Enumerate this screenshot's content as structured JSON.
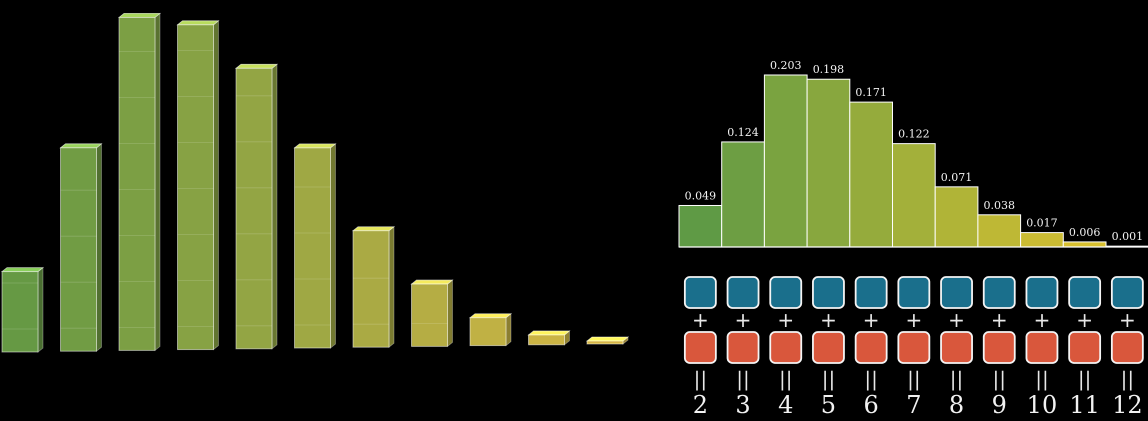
{
  "chart_data": [
    {
      "type": "bar",
      "style": "3d-stacked-blocks",
      "values": [
        0.049,
        0.124,
        0.203,
        0.198,
        0.171,
        0.122,
        0.071,
        0.038,
        0.017,
        0.006,
        0.001
      ],
      "color_gradient": [
        "#6fa64a",
        "#e8c64a"
      ]
    },
    {
      "type": "bar",
      "categories": [
        "2",
        "3",
        "4",
        "5",
        "6",
        "7",
        "8",
        "9",
        "10",
        "11",
        "12"
      ],
      "values": [
        0.049,
        0.124,
        0.203,
        0.198,
        0.171,
        0.122,
        0.071,
        0.038,
        0.017,
        0.006,
        0.001
      ],
      "value_labels": [
        "0.049",
        "0.124",
        "0.203",
        "0.198",
        "0.171",
        "0.122",
        "0.071",
        "0.038",
        "0.017",
        "0.006",
        "0.001"
      ],
      "color_gradient": [
        "#5f9a45",
        "#e6c52e"
      ],
      "ylim": [
        0,
        0.203
      ]
    }
  ],
  "sum_diagram": {
    "plus_symbol": "+",
    "equals_symbol": "||",
    "top_color": "#1a6f8c",
    "bottom_color": "#d9573c"
  }
}
